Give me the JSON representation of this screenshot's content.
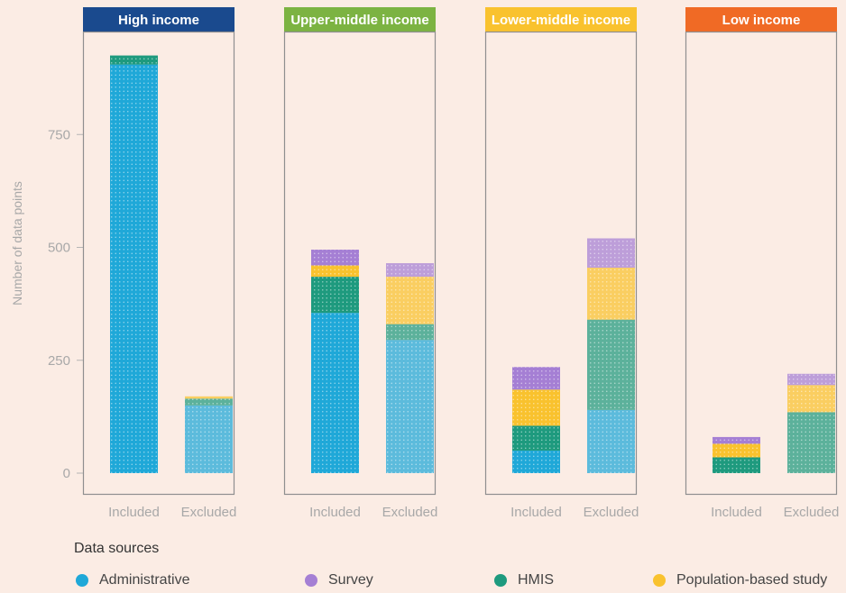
{
  "chart_data": {
    "type": "bar",
    "stacked": true,
    "ylabel": "Number of data points",
    "yticks": [
      0,
      250,
      500,
      750
    ],
    "ylim": [
      0,
      940
    ],
    "categories": [
      "Included",
      "Excluded"
    ],
    "legend": {
      "title": "Data sources",
      "position": "bottom",
      "items": [
        "Administrative",
        "Survey",
        "HMIS",
        "Population-based study"
      ]
    },
    "colors": {
      "Administrative": "#1fa8d8",
      "Survey": "#a57fd4",
      "HMIS": "#1e9a7e",
      "Population-based study": "#f9c22e"
    },
    "panels": [
      {
        "title": "High income",
        "color": "#1a4a8e",
        "series": [
          {
            "name": "Administrative",
            "values": [
              905,
              150
            ]
          },
          {
            "name": "Population-based study",
            "values": [
              0,
              5
            ]
          },
          {
            "name": "HMIS",
            "values": [
              20,
              15
            ]
          },
          {
            "name": "Survey",
            "values": [
              0,
              0
            ]
          }
        ]
      },
      {
        "title": "Upper-middle income",
        "color": "#7cb342",
        "series": [
          {
            "name": "Administrative",
            "values": [
              355,
              295
            ]
          },
          {
            "name": "HMIS",
            "values": [
              80,
              35
            ]
          },
          {
            "name": "Population-based study",
            "values": [
              25,
              105
            ]
          },
          {
            "name": "Survey",
            "values": [
              35,
              30
            ]
          }
        ]
      },
      {
        "title": "Lower-middle income",
        "color": "#f9c22e",
        "series": [
          {
            "name": "Administrative",
            "values": [
              50,
              140
            ]
          },
          {
            "name": "HMIS",
            "values": [
              55,
              200
            ]
          },
          {
            "name": "Population-based study",
            "values": [
              80,
              115
            ]
          },
          {
            "name": "Survey",
            "values": [
              50,
              65
            ]
          }
        ]
      },
      {
        "title": "Low income",
        "color": "#f06a25",
        "series": [
          {
            "name": "Administrative",
            "values": [
              0,
              0
            ]
          },
          {
            "name": "HMIS",
            "values": [
              35,
              135
            ]
          },
          {
            "name": "Population-based study",
            "values": [
              30,
              60
            ]
          },
          {
            "name": "Survey",
            "values": [
              15,
              25
            ]
          }
        ]
      }
    ]
  }
}
